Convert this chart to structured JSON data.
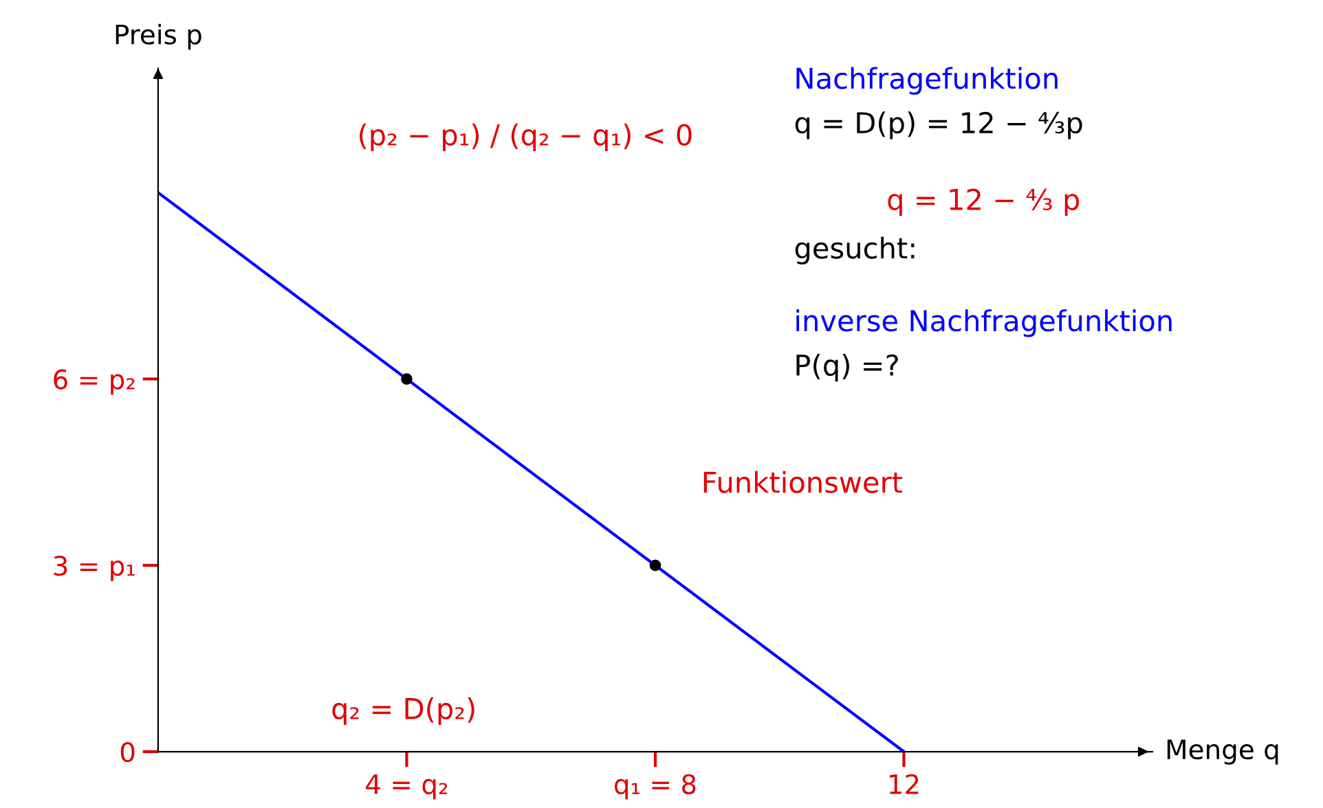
{
  "chart_data": {
    "type": "line",
    "xlabel": "Menge q",
    "ylabel": "Preis p",
    "xlim": [
      0,
      16
    ],
    "ylim": [
      0,
      11
    ],
    "xticks": [
      {
        "value": 4,
        "label": "4 = q₂"
      },
      {
        "value": 8,
        "label": "q₁ = 8"
      },
      {
        "value": 12,
        "label": "12"
      }
    ],
    "yticks": [
      {
        "value": 0,
        "label": "0"
      },
      {
        "value": 3,
        "label": "3 = p₁"
      },
      {
        "value": 6,
        "label": "6 = p₂"
      }
    ],
    "grid": false,
    "legend": false,
    "series": [
      {
        "color": "#0000ff",
        "x": [
          0,
          12
        ],
        "values": [
          9,
          0
        ]
      },
      {
        "type": "scatter",
        "color": "#000000",
        "x": [
          4,
          8
        ],
        "values": [
          6,
          3
        ]
      }
    ],
    "annotations": [
      "(p₂ − p₁) / (q₂ − q₁) < 0",
      "Nachfragefunktion",
      "q = D(p) = 12 − ⁴⁄₃p",
      "q = 12 − ⁴⁄₃ p",
      "gesucht:",
      "inverse Nachfragefunktion",
      "P(q) =?",
      "Funktionswert",
      "q₂ = D(p₂)"
    ]
  }
}
